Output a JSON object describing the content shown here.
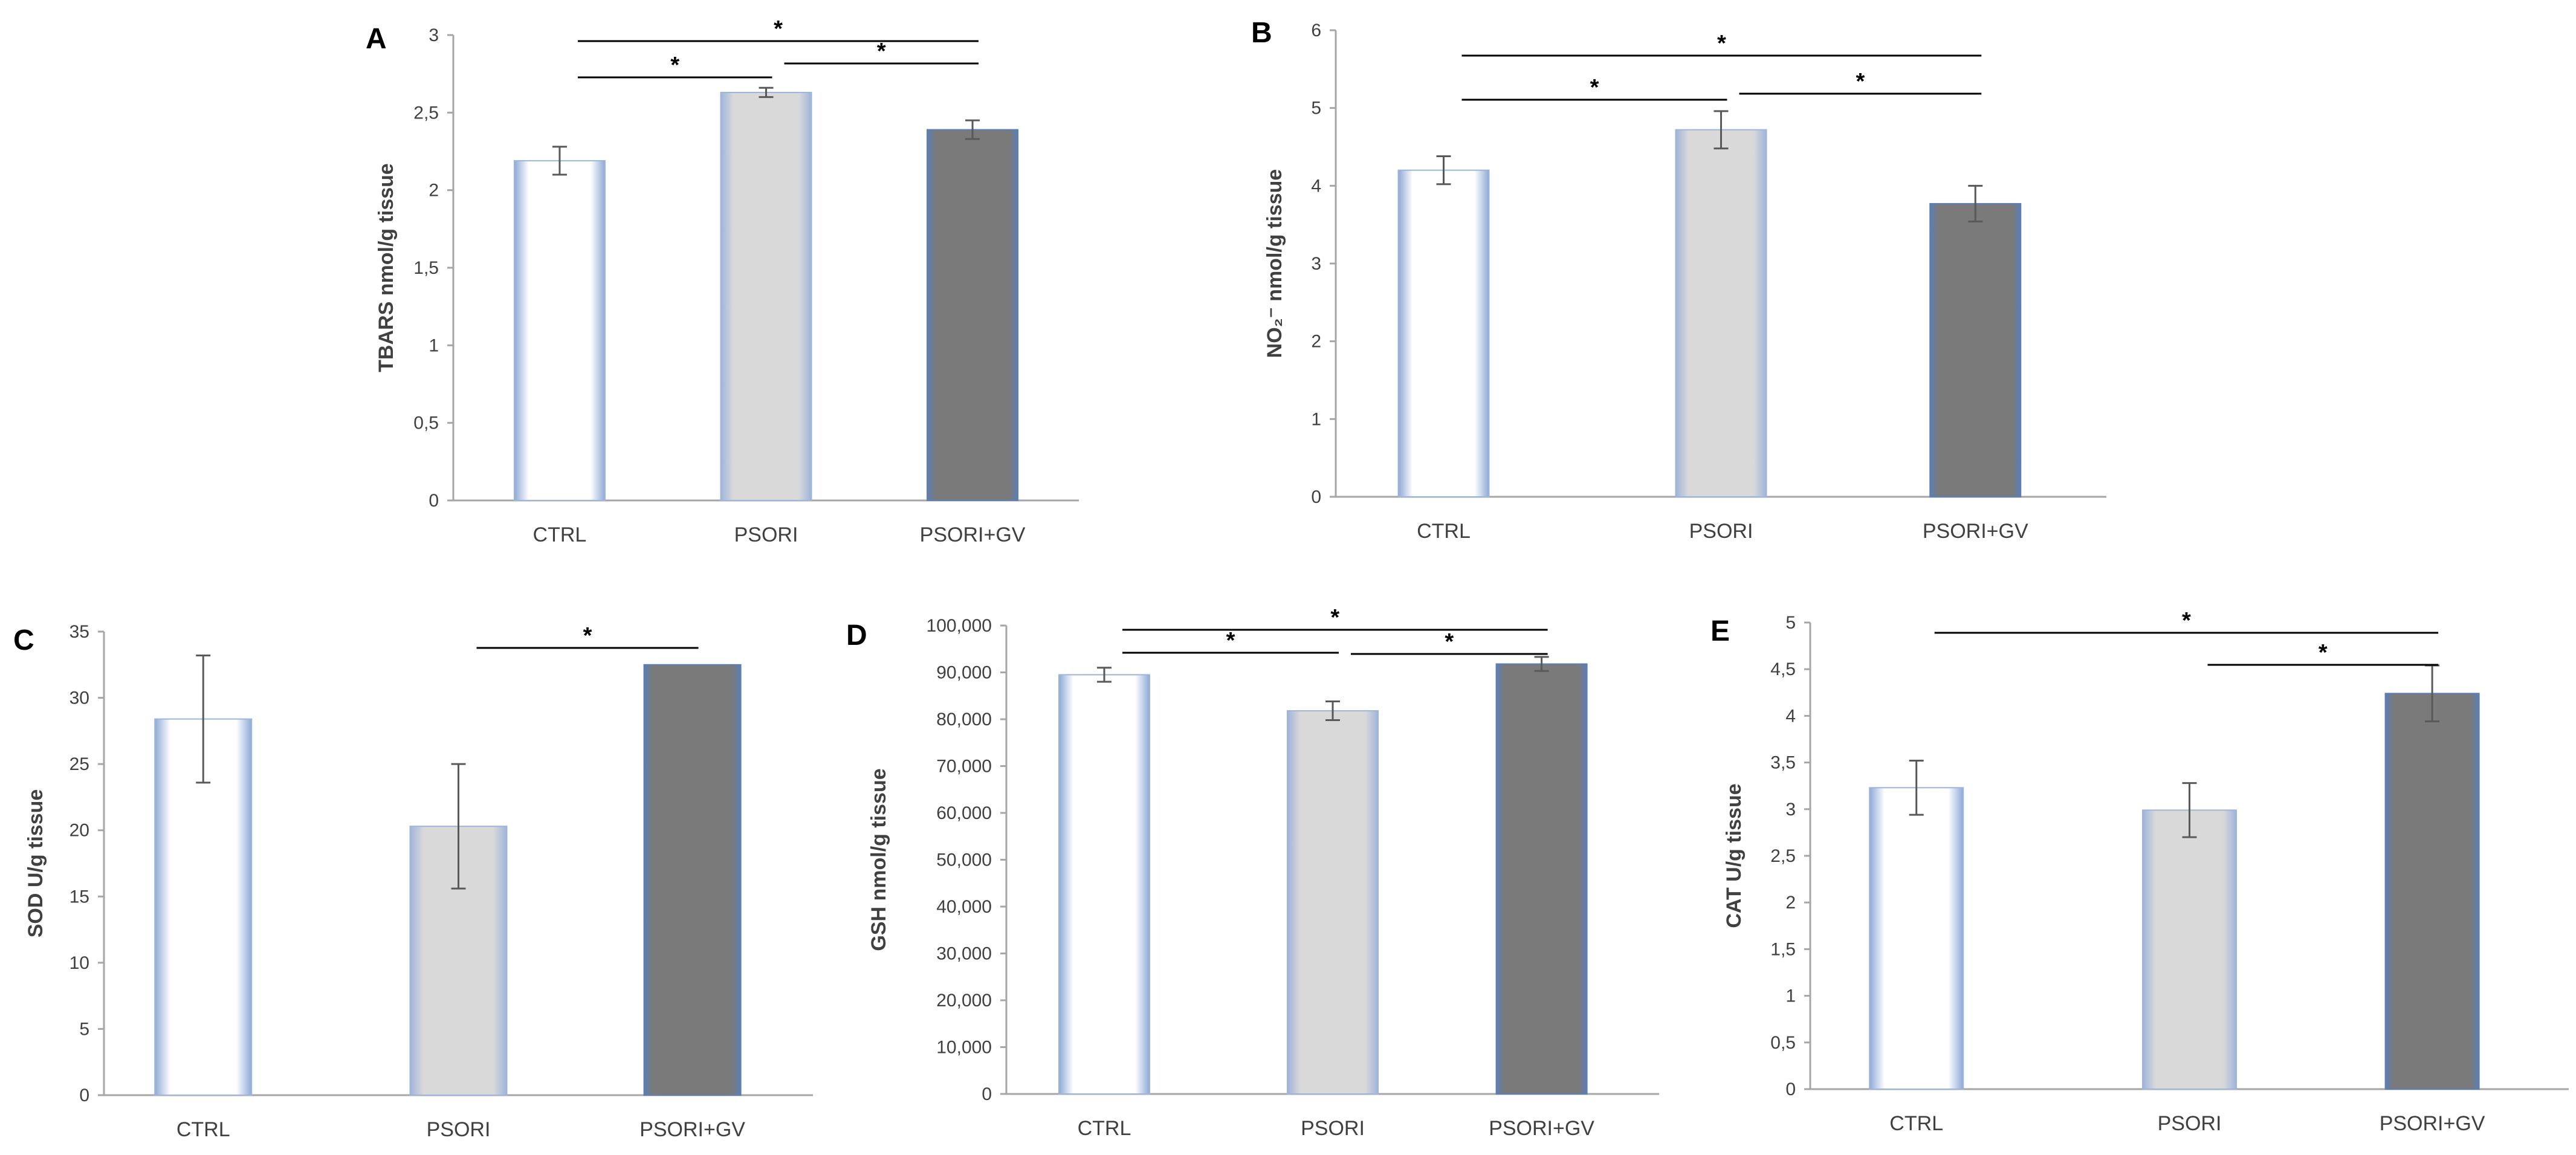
{
  "colors": {
    "ctrl_fill": "#ffffff",
    "psori_fill": "#d9d9d9",
    "psorigv_fill": "#7a7a7a",
    "bar_edge": "#8fa9d6",
    "axis": "#a6a6a6",
    "text": "#404040"
  },
  "chart_data": [
    {
      "panel": "A",
      "type": "bar",
      "title": "",
      "xlabel": "",
      "ylabel": "TBARS nmol/g tissue",
      "ylim": [
        0,
        3
      ],
      "yticks": [
        "0",
        "0,5",
        "1",
        "1,5",
        "2",
        "2,5",
        "3"
      ],
      "tick_values": [
        0,
        0.5,
        1,
        1.5,
        2,
        2.5,
        3
      ],
      "categories": [
        "CTRL",
        "PSORI",
        "PSORI+GV"
      ],
      "values": [
        2.19,
        2.63,
        2.39
      ],
      "errors": [
        0.09,
        0.03,
        0.06
      ],
      "significance": [
        {
          "from": 0,
          "to": 1,
          "label": "*"
        },
        {
          "from": 1,
          "to": 2,
          "label": "*"
        },
        {
          "from": 0,
          "to": 2,
          "label": "*"
        }
      ]
    },
    {
      "panel": "B",
      "type": "bar",
      "title": "",
      "xlabel": "",
      "ylabel": "NO₂⁻ nmol/g tissue",
      "ylim": [
        0,
        6
      ],
      "yticks": [
        "0",
        "1",
        "2",
        "3",
        "4",
        "5",
        "6"
      ],
      "tick_values": [
        0,
        1,
        2,
        3,
        4,
        5,
        6
      ],
      "categories": [
        "CTRL",
        "PSORI",
        "PSORI+GV"
      ],
      "values": [
        4.2,
        4.72,
        3.77
      ],
      "errors": [
        0.18,
        0.24,
        0.23
      ],
      "significance": [
        {
          "from": 0,
          "to": 1,
          "label": "*"
        },
        {
          "from": 1,
          "to": 2,
          "label": "*"
        },
        {
          "from": 0,
          "to": 2,
          "label": "*"
        }
      ]
    },
    {
      "panel": "C",
      "type": "bar",
      "title": "",
      "xlabel": "",
      "ylabel": "SOD U/g tissue",
      "ylim": [
        0,
        35
      ],
      "yticks": [
        "0",
        "5",
        "10",
        "15",
        "20",
        "25",
        "30",
        "35"
      ],
      "tick_values": [
        0,
        5,
        10,
        15,
        20,
        25,
        30,
        35
      ],
      "categories": [
        "CTRL",
        "PSORI",
        "PSORI+GV"
      ],
      "values": [
        28.4,
        20.3,
        32.5
      ],
      "errors": [
        4.8,
        4.7,
        0
      ],
      "significance": [
        {
          "from": 1,
          "to": 2,
          "label": "*"
        }
      ]
    },
    {
      "panel": "D",
      "type": "bar",
      "title": "",
      "xlabel": "",
      "ylabel": "GSH nmol/g tissue",
      "ylim": [
        0,
        100000
      ],
      "yticks": [
        "0",
        "10,000",
        "20,000",
        "30,000",
        "40,000",
        "50,000",
        "60,000",
        "70,000",
        "80,000",
        "90,000",
        "100,000"
      ],
      "tick_values": [
        0,
        10000,
        20000,
        30000,
        40000,
        50000,
        60000,
        70000,
        80000,
        90000,
        100000
      ],
      "categories": [
        "CTRL",
        "PSORI",
        "PSORI+GV"
      ],
      "values": [
        89500,
        81800,
        91800
      ],
      "errors": [
        1500,
        2000,
        1500
      ],
      "significance": [
        {
          "from": 0,
          "to": 1,
          "label": "*"
        },
        {
          "from": 1,
          "to": 2,
          "label": "*"
        },
        {
          "from": 0,
          "to": 2,
          "label": "*"
        }
      ]
    },
    {
      "panel": "E",
      "type": "bar",
      "title": "",
      "xlabel": "",
      "ylabel": "CAT U/g tissue",
      "ylim": [
        0,
        5
      ],
      "yticks": [
        "0",
        "0,5",
        "1",
        "1,5",
        "2",
        "2,5",
        "3",
        "3,5",
        "4",
        "4,5",
        "5"
      ],
      "tick_values": [
        0,
        0.5,
        1,
        1.5,
        2,
        2.5,
        3,
        3.5,
        4,
        4.5,
        5
      ],
      "categories": [
        "CTRL",
        "PSORI",
        "PSORI+GV"
      ],
      "values": [
        3.23,
        2.99,
        4.24
      ],
      "errors": [
        0.29,
        0.29,
        0.3
      ],
      "significance": [
        {
          "from": 1,
          "to": 2,
          "label": "*"
        },
        {
          "from": 0,
          "to": 2,
          "label": "*"
        }
      ]
    }
  ]
}
